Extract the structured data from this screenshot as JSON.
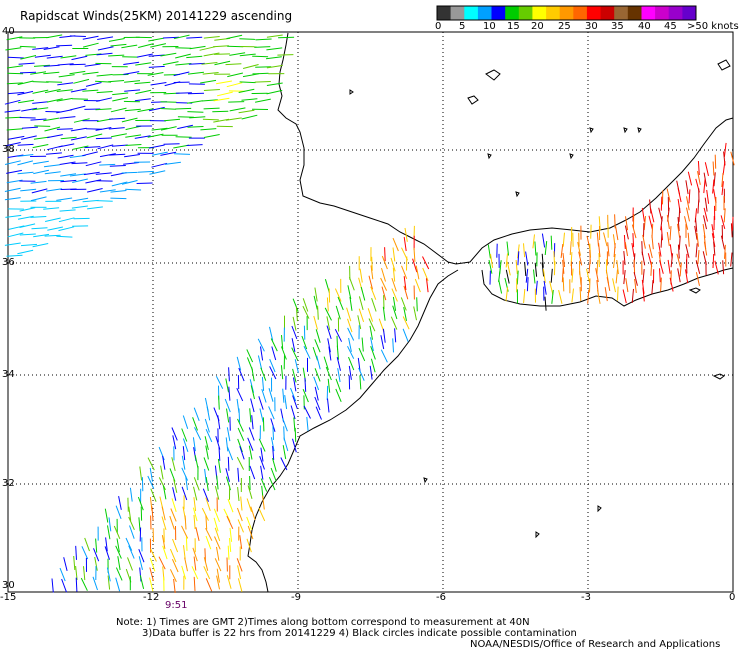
{
  "title": "Rapidscat Winds(25KM) 20141229 ascending",
  "legend": {
    "ticks": [
      "0",
      "5",
      "10",
      "15",
      "20",
      "25",
      "30",
      "35",
      "40",
      "45",
      ">50 knots"
    ],
    "colors": [
      "#333333",
      "#999999",
      "#00ffff",
      "#00a0ff",
      "#0000ff",
      "#00cc00",
      "#66cc00",
      "#ffff00",
      "#ffcc00",
      "#ff9900",
      "#ff6600",
      "#ff0000",
      "#cc0000",
      "#996633",
      "#663300",
      "#ff00ff",
      "#cc00cc",
      "#9900cc",
      "#6600cc"
    ]
  },
  "axes": {
    "lat_labels": [
      "40",
      "38",
      "36",
      "34",
      "32",
      "30"
    ],
    "lon_labels": [
      "-15",
      "-12",
      "-9",
      "-6",
      "-3",
      "0"
    ]
  },
  "time_label": "9:51",
  "notes": {
    "line1": "Note: 1) Times are GMT 2)Times along bottom correspond to measurement at 40N",
    "line2": "3)Data buffer is 22 hrs from 20141229 4) Black circles indicate possible contamination",
    "line3": "NOAA/NESDIS/Office of Research and Applications"
  }
}
